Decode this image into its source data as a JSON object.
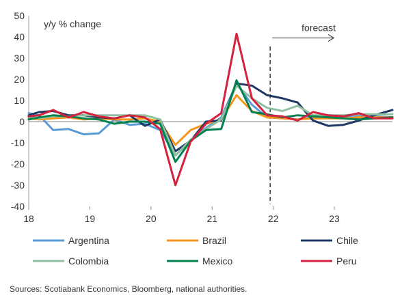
{
  "chart_data": {
    "type": "line",
    "title": "",
    "xlabel": "",
    "ylabel": "y/y % change",
    "ylim": [
      -40,
      50
    ],
    "yticks": [
      -40,
      -30,
      -20,
      -10,
      0,
      10,
      20,
      30,
      40,
      50
    ],
    "xlim": [
      18.0,
      23.95
    ],
    "xticks": [
      18,
      19,
      20,
      21,
      22,
      23
    ],
    "xtick_labels": [
      "18",
      "19",
      "20",
      "21",
      "22",
      "23"
    ],
    "grid": false,
    "legend_position": "bottom",
    "annotation": {
      "text": "forecast",
      "x": 21.95,
      "style": "dashed vertical line with right arrow"
    },
    "x": [
      18.0,
      18.17,
      18.4,
      18.65,
      18.9,
      19.15,
      19.4,
      19.65,
      19.9,
      20.15,
      20.4,
      20.65,
      20.9,
      21.15,
      21.4,
      21.65,
      21.9,
      22.15,
      22.4,
      22.65,
      22.9,
      23.15,
      23.4,
      23.65,
      23.95
    ],
    "series": [
      {
        "name": "Argentina",
        "color": "#5b9bd5",
        "values": [
          4,
          3,
          -4,
          -3.5,
          -6,
          -5.5,
          1,
          -1.5,
          -1,
          -4,
          -16,
          -9,
          -3,
          2,
          18,
          8,
          2,
          2,
          1,
          2,
          3,
          2.5,
          3,
          2.5,
          2
        ]
      },
      {
        "name": "Brazil",
        "color": "#f7941d",
        "values": [
          1.5,
          1,
          1.5,
          2,
          1,
          1.5,
          1,
          1,
          1.5,
          0,
          -11,
          -4,
          -1,
          1,
          12.5,
          5,
          2,
          1.5,
          1,
          1.5,
          1.5,
          1.5,
          2,
          2,
          2
        ]
      },
      {
        "name": "Chile",
        "color": "#1f3864",
        "values": [
          3,
          4.5,
          5,
          3,
          3,
          2,
          1.5,
          3,
          -2,
          1,
          -14,
          -9,
          0,
          0.5,
          18,
          17,
          12.5,
          11,
          9,
          0.5,
          -2,
          -1.5,
          0.5,
          3,
          5.5
        ]
      },
      {
        "name": "Colombia",
        "color": "#8fc1a0",
        "values": [
          2,
          1.5,
          2.5,
          2.5,
          3,
          3,
          3,
          3,
          3,
          1,
          -16,
          -8.5,
          -3.5,
          1,
          17,
          11,
          6.5,
          5,
          7.5,
          3,
          3,
          3,
          3.5,
          3.5,
          3.5
        ]
      },
      {
        "name": "Mexico",
        "color": "#00814f",
        "values": [
          1,
          2,
          3,
          2.5,
          1.5,
          1,
          -1,
          0,
          0,
          -1,
          -19,
          -9,
          -4,
          -3.5,
          19.5,
          4.5,
          3.5,
          2,
          3,
          2.5,
          2,
          1.5,
          1,
          1.5,
          2
        ]
      },
      {
        "name": "Peru",
        "color": "#d4213d",
        "values": [
          2.5,
          3,
          5.5,
          2,
          4.5,
          2.5,
          1.5,
          3,
          2,
          -3.5,
          -30,
          -9.5,
          -1,
          4,
          41.5,
          11,
          3,
          2.5,
          0.5,
          4.5,
          3,
          2.5,
          4,
          1.5,
          1.5
        ]
      }
    ]
  },
  "legend": {
    "items": [
      {
        "name": "Argentina",
        "color": "#5b9bd5"
      },
      {
        "name": "Brazil",
        "color": "#f7941d"
      },
      {
        "name": "Chile",
        "color": "#1f3864"
      },
      {
        "name": "Colombia",
        "color": "#8fc1a0"
      },
      {
        "name": "Mexico",
        "color": "#00814f"
      },
      {
        "name": "Peru",
        "color": "#d4213d"
      }
    ]
  },
  "source": "Sources: Scotiabank Economics, Bloomberg, national authorities."
}
